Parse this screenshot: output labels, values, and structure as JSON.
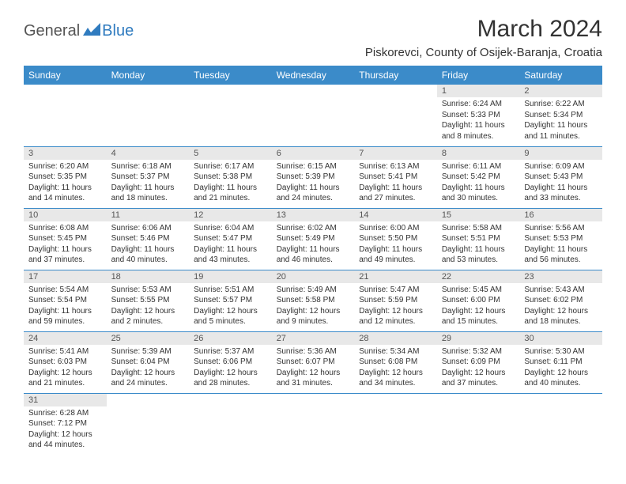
{
  "logo": {
    "general": "General",
    "blue": "Blue"
  },
  "title": "March 2024",
  "location": "Piskorevci, County of Osijek-Baranja, Croatia",
  "colors": {
    "header_bg": "#3b8bc9",
    "header_text": "#ffffff",
    "daynum_bg": "#e8e8e8",
    "border": "#3b8bc9",
    "logo_blue": "#2f7bbf"
  },
  "weekdays": [
    "Sunday",
    "Monday",
    "Tuesday",
    "Wednesday",
    "Thursday",
    "Friday",
    "Saturday"
  ],
  "weeks": [
    [
      null,
      null,
      null,
      null,
      null,
      {
        "n": "1",
        "sr": "Sunrise: 6:24 AM",
        "ss": "Sunset: 5:33 PM",
        "d1": "Daylight: 11 hours",
        "d2": "and 8 minutes."
      },
      {
        "n": "2",
        "sr": "Sunrise: 6:22 AM",
        "ss": "Sunset: 5:34 PM",
        "d1": "Daylight: 11 hours",
        "d2": "and 11 minutes."
      }
    ],
    [
      {
        "n": "3",
        "sr": "Sunrise: 6:20 AM",
        "ss": "Sunset: 5:35 PM",
        "d1": "Daylight: 11 hours",
        "d2": "and 14 minutes."
      },
      {
        "n": "4",
        "sr": "Sunrise: 6:18 AM",
        "ss": "Sunset: 5:37 PM",
        "d1": "Daylight: 11 hours",
        "d2": "and 18 minutes."
      },
      {
        "n": "5",
        "sr": "Sunrise: 6:17 AM",
        "ss": "Sunset: 5:38 PM",
        "d1": "Daylight: 11 hours",
        "d2": "and 21 minutes."
      },
      {
        "n": "6",
        "sr": "Sunrise: 6:15 AM",
        "ss": "Sunset: 5:39 PM",
        "d1": "Daylight: 11 hours",
        "d2": "and 24 minutes."
      },
      {
        "n": "7",
        "sr": "Sunrise: 6:13 AM",
        "ss": "Sunset: 5:41 PM",
        "d1": "Daylight: 11 hours",
        "d2": "and 27 minutes."
      },
      {
        "n": "8",
        "sr": "Sunrise: 6:11 AM",
        "ss": "Sunset: 5:42 PM",
        "d1": "Daylight: 11 hours",
        "d2": "and 30 minutes."
      },
      {
        "n": "9",
        "sr": "Sunrise: 6:09 AM",
        "ss": "Sunset: 5:43 PM",
        "d1": "Daylight: 11 hours",
        "d2": "and 33 minutes."
      }
    ],
    [
      {
        "n": "10",
        "sr": "Sunrise: 6:08 AM",
        "ss": "Sunset: 5:45 PM",
        "d1": "Daylight: 11 hours",
        "d2": "and 37 minutes."
      },
      {
        "n": "11",
        "sr": "Sunrise: 6:06 AM",
        "ss": "Sunset: 5:46 PM",
        "d1": "Daylight: 11 hours",
        "d2": "and 40 minutes."
      },
      {
        "n": "12",
        "sr": "Sunrise: 6:04 AM",
        "ss": "Sunset: 5:47 PM",
        "d1": "Daylight: 11 hours",
        "d2": "and 43 minutes."
      },
      {
        "n": "13",
        "sr": "Sunrise: 6:02 AM",
        "ss": "Sunset: 5:49 PM",
        "d1": "Daylight: 11 hours",
        "d2": "and 46 minutes."
      },
      {
        "n": "14",
        "sr": "Sunrise: 6:00 AM",
        "ss": "Sunset: 5:50 PM",
        "d1": "Daylight: 11 hours",
        "d2": "and 49 minutes."
      },
      {
        "n": "15",
        "sr": "Sunrise: 5:58 AM",
        "ss": "Sunset: 5:51 PM",
        "d1": "Daylight: 11 hours",
        "d2": "and 53 minutes."
      },
      {
        "n": "16",
        "sr": "Sunrise: 5:56 AM",
        "ss": "Sunset: 5:53 PM",
        "d1": "Daylight: 11 hours",
        "d2": "and 56 minutes."
      }
    ],
    [
      {
        "n": "17",
        "sr": "Sunrise: 5:54 AM",
        "ss": "Sunset: 5:54 PM",
        "d1": "Daylight: 11 hours",
        "d2": "and 59 minutes."
      },
      {
        "n": "18",
        "sr": "Sunrise: 5:53 AM",
        "ss": "Sunset: 5:55 PM",
        "d1": "Daylight: 12 hours",
        "d2": "and 2 minutes."
      },
      {
        "n": "19",
        "sr": "Sunrise: 5:51 AM",
        "ss": "Sunset: 5:57 PM",
        "d1": "Daylight: 12 hours",
        "d2": "and 5 minutes."
      },
      {
        "n": "20",
        "sr": "Sunrise: 5:49 AM",
        "ss": "Sunset: 5:58 PM",
        "d1": "Daylight: 12 hours",
        "d2": "and 9 minutes."
      },
      {
        "n": "21",
        "sr": "Sunrise: 5:47 AM",
        "ss": "Sunset: 5:59 PM",
        "d1": "Daylight: 12 hours",
        "d2": "and 12 minutes."
      },
      {
        "n": "22",
        "sr": "Sunrise: 5:45 AM",
        "ss": "Sunset: 6:00 PM",
        "d1": "Daylight: 12 hours",
        "d2": "and 15 minutes."
      },
      {
        "n": "23",
        "sr": "Sunrise: 5:43 AM",
        "ss": "Sunset: 6:02 PM",
        "d1": "Daylight: 12 hours",
        "d2": "and 18 minutes."
      }
    ],
    [
      {
        "n": "24",
        "sr": "Sunrise: 5:41 AM",
        "ss": "Sunset: 6:03 PM",
        "d1": "Daylight: 12 hours",
        "d2": "and 21 minutes."
      },
      {
        "n": "25",
        "sr": "Sunrise: 5:39 AM",
        "ss": "Sunset: 6:04 PM",
        "d1": "Daylight: 12 hours",
        "d2": "and 24 minutes."
      },
      {
        "n": "26",
        "sr": "Sunrise: 5:37 AM",
        "ss": "Sunset: 6:06 PM",
        "d1": "Daylight: 12 hours",
        "d2": "and 28 minutes."
      },
      {
        "n": "27",
        "sr": "Sunrise: 5:36 AM",
        "ss": "Sunset: 6:07 PM",
        "d1": "Daylight: 12 hours",
        "d2": "and 31 minutes."
      },
      {
        "n": "28",
        "sr": "Sunrise: 5:34 AM",
        "ss": "Sunset: 6:08 PM",
        "d1": "Daylight: 12 hours",
        "d2": "and 34 minutes."
      },
      {
        "n": "29",
        "sr": "Sunrise: 5:32 AM",
        "ss": "Sunset: 6:09 PM",
        "d1": "Daylight: 12 hours",
        "d2": "and 37 minutes."
      },
      {
        "n": "30",
        "sr": "Sunrise: 5:30 AM",
        "ss": "Sunset: 6:11 PM",
        "d1": "Daylight: 12 hours",
        "d2": "and 40 minutes."
      }
    ],
    [
      {
        "n": "31",
        "sr": "Sunrise: 6:28 AM",
        "ss": "Sunset: 7:12 PM",
        "d1": "Daylight: 12 hours",
        "d2": "and 44 minutes."
      },
      null,
      null,
      null,
      null,
      null,
      null
    ]
  ]
}
